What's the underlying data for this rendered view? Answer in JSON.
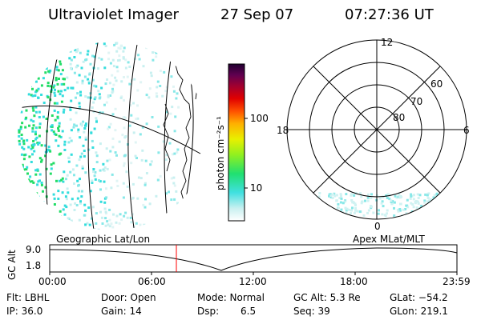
{
  "header": {
    "title": "Ultraviolet Imager",
    "date": "27 Sep 07",
    "time": "07:27:36 UT"
  },
  "colorbar": {
    "label": "photon cm⁻²s⁻¹",
    "ticks": [
      "100",
      "10"
    ]
  },
  "polar": {
    "mlt_labels": {
      "top": "12",
      "left": "18",
      "right": "6",
      "bottom": "0"
    },
    "lat_labels": [
      "60",
      "70",
      "80"
    ]
  },
  "timeline": {
    "left_title": "Geographic Lat/Lon",
    "right_title": "Apex MLat/MLT",
    "y_axis_label": "GC Alt",
    "y_ticks": [
      "9.0",
      "1.8"
    ],
    "x_ticks": [
      "00:00",
      "06:00",
      "12:00",
      "18:00",
      "23:59"
    ],
    "marker_time": "07:27:36"
  },
  "status": {
    "flt": "Flt: LBHL",
    "door": "Door: Open",
    "mode": "Mode: Normal",
    "gc_alt": "GC Alt: 5.3 Re",
    "glat": "GLat: −54.2",
    "ip": "IP: 36.0",
    "gain": "Gain: 14",
    "dsp_label": "Dsp:",
    "dsp_value": "6.5",
    "seq": "Seq: 39",
    "glon": "GLon: 219.1"
  },
  "colors": {
    "marker": "#ff0000",
    "aurora_green": "#22dd66",
    "aurora_cyan": "#33dddd"
  }
}
